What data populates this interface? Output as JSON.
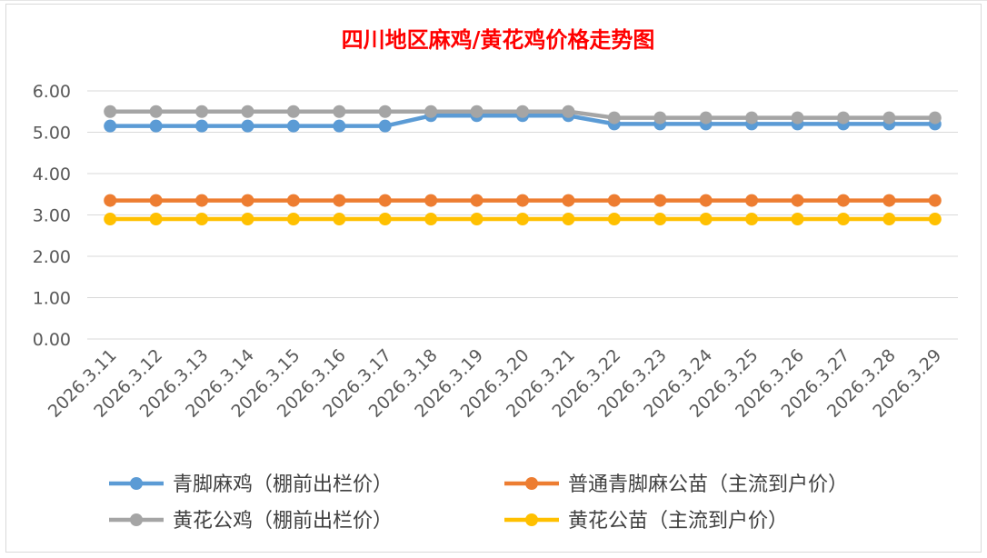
{
  "chart_data": {
    "type": "line",
    "title": "四川地区麻鸡/黄花鸡价格走势图",
    "title_color": "#ff0000",
    "xlabel": "",
    "ylabel": "",
    "ylim": [
      0,
      6
    ],
    "y_ticks": [
      "0.00",
      "1.00",
      "2.00",
      "3.00",
      "4.00",
      "5.00",
      "6.00"
    ],
    "grid": true,
    "legend_position": "bottom",
    "categories": [
      "2026.3.11",
      "2026.3.12",
      "2026.3.13",
      "2026.3.14",
      "2026.3.15",
      "2026.3.16",
      "2026.3.17",
      "2026.3.18",
      "2026.3.19",
      "2026.3.20",
      "2026.3.21",
      "2026.3.22",
      "2026.3.23",
      "2026.3.24",
      "2026.3.25",
      "2026.3.26",
      "2026.3.27",
      "2026.3.28",
      "2026.3.29"
    ],
    "series": [
      {
        "name": "青脚麻鸡（棚前出栏价）",
        "color": "#5b9bd5",
        "values": [
          5.15,
          5.15,
          5.15,
          5.15,
          5.15,
          5.15,
          5.15,
          5.4,
          5.4,
          5.4,
          5.4,
          5.2,
          5.2,
          5.2,
          5.2,
          5.2,
          5.2,
          5.2,
          5.2
        ]
      },
      {
        "name": "普通青脚麻公苗（主流到户价）",
        "color": "#ed7d31",
        "values": [
          3.35,
          3.35,
          3.35,
          3.35,
          3.35,
          3.35,
          3.35,
          3.35,
          3.35,
          3.35,
          3.35,
          3.35,
          3.35,
          3.35,
          3.35,
          3.35,
          3.35,
          3.35,
          3.35
        ]
      },
      {
        "name": "黄花公鸡（棚前出栏价）",
        "color": "#a5a5a5",
        "values": [
          5.5,
          5.5,
          5.5,
          5.5,
          5.5,
          5.5,
          5.5,
          5.5,
          5.5,
          5.5,
          5.5,
          5.35,
          5.35,
          5.35,
          5.35,
          5.35,
          5.35,
          5.35,
          5.35
        ]
      },
      {
        "name": "黄花公苗（主流到户价）",
        "color": "#ffc000",
        "values": [
          2.9,
          2.9,
          2.9,
          2.9,
          2.9,
          2.9,
          2.9,
          2.9,
          2.9,
          2.9,
          2.9,
          2.9,
          2.9,
          2.9,
          2.9,
          2.9,
          2.9,
          2.9,
          2.9
        ]
      }
    ]
  }
}
